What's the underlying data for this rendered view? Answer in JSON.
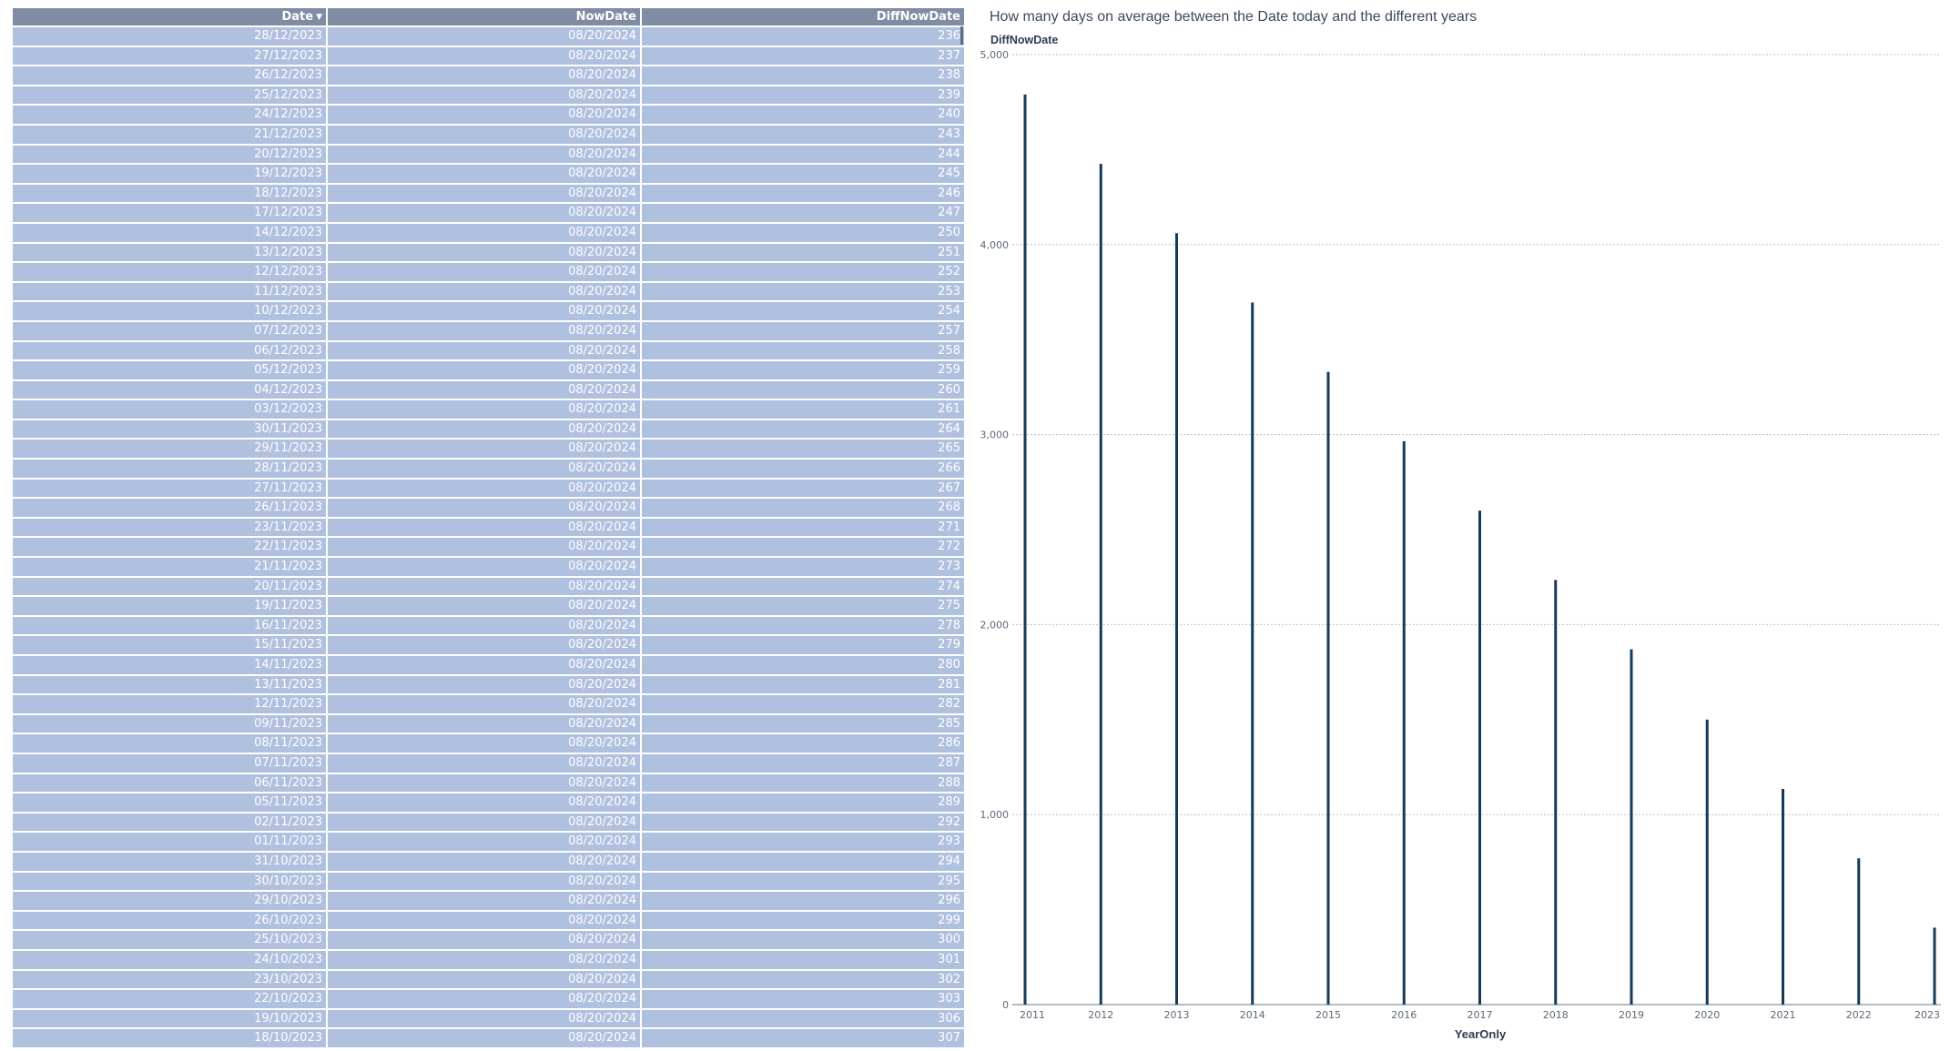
{
  "table": {
    "headers": [
      "Date",
      "NowDate",
      "DiffNowDate"
    ],
    "rows": [
      [
        "28/12/2023",
        "08/20/2024",
        "236"
      ],
      [
        "27/12/2023",
        "08/20/2024",
        "237"
      ],
      [
        "26/12/2023",
        "08/20/2024",
        "238"
      ],
      [
        "25/12/2023",
        "08/20/2024",
        "239"
      ],
      [
        "24/12/2023",
        "08/20/2024",
        "240"
      ],
      [
        "21/12/2023",
        "08/20/2024",
        "243"
      ],
      [
        "20/12/2023",
        "08/20/2024",
        "244"
      ],
      [
        "19/12/2023",
        "08/20/2024",
        "245"
      ],
      [
        "18/12/2023",
        "08/20/2024",
        "246"
      ],
      [
        "17/12/2023",
        "08/20/2024",
        "247"
      ],
      [
        "14/12/2023",
        "08/20/2024",
        "250"
      ],
      [
        "13/12/2023",
        "08/20/2024",
        "251"
      ],
      [
        "12/12/2023",
        "08/20/2024",
        "252"
      ],
      [
        "11/12/2023",
        "08/20/2024",
        "253"
      ],
      [
        "10/12/2023",
        "08/20/2024",
        "254"
      ],
      [
        "07/12/2023",
        "08/20/2024",
        "257"
      ],
      [
        "06/12/2023",
        "08/20/2024",
        "258"
      ],
      [
        "05/12/2023",
        "08/20/2024",
        "259"
      ],
      [
        "04/12/2023",
        "08/20/2024",
        "260"
      ],
      [
        "03/12/2023",
        "08/20/2024",
        "261"
      ],
      [
        "30/11/2023",
        "08/20/2024",
        "264"
      ],
      [
        "29/11/2023",
        "08/20/2024",
        "265"
      ],
      [
        "28/11/2023",
        "08/20/2024",
        "266"
      ],
      [
        "27/11/2023",
        "08/20/2024",
        "267"
      ],
      [
        "26/11/2023",
        "08/20/2024",
        "268"
      ],
      [
        "23/11/2023",
        "08/20/2024",
        "271"
      ],
      [
        "22/11/2023",
        "08/20/2024",
        "272"
      ],
      [
        "21/11/2023",
        "08/20/2024",
        "273"
      ],
      [
        "20/11/2023",
        "08/20/2024",
        "274"
      ],
      [
        "19/11/2023",
        "08/20/2024",
        "275"
      ],
      [
        "16/11/2023",
        "08/20/2024",
        "278"
      ],
      [
        "15/11/2023",
        "08/20/2024",
        "279"
      ],
      [
        "14/11/2023",
        "08/20/2024",
        "280"
      ],
      [
        "13/11/2023",
        "08/20/2024",
        "281"
      ],
      [
        "12/11/2023",
        "08/20/2024",
        "282"
      ],
      [
        "09/11/2023",
        "08/20/2024",
        "285"
      ],
      [
        "08/11/2023",
        "08/20/2024",
        "286"
      ],
      [
        "07/11/2023",
        "08/20/2024",
        "287"
      ],
      [
        "06/11/2023",
        "08/20/2024",
        "288"
      ],
      [
        "05/11/2023",
        "08/20/2024",
        "289"
      ],
      [
        "02/11/2023",
        "08/20/2024",
        "292"
      ],
      [
        "01/11/2023",
        "08/20/2024",
        "293"
      ],
      [
        "31/10/2023",
        "08/20/2024",
        "294"
      ],
      [
        "30/10/2023",
        "08/20/2024",
        "295"
      ],
      [
        "29/10/2023",
        "08/20/2024",
        "296"
      ],
      [
        "26/10/2023",
        "08/20/2024",
        "299"
      ],
      [
        "25/10/2023",
        "08/20/2024",
        "300"
      ],
      [
        "24/10/2023",
        "08/20/2024",
        "301"
      ],
      [
        "23/10/2023",
        "08/20/2024",
        "302"
      ],
      [
        "22/10/2023",
        "08/20/2024",
        "303"
      ],
      [
        "19/10/2023",
        "08/20/2024",
        "306"
      ],
      [
        "18/10/2023",
        "08/20/2024",
        "307"
      ]
    ],
    "sort_icon": "sort-descending-icon",
    "colors": {
      "header_bg": "#7f8ca3",
      "row_bg": "#b0c0df",
      "text": "#ffffff"
    }
  },
  "chart_data": {
    "type": "bar",
    "title": "How many days on average between the Date today and the different years",
    "ylabel": "DiffNowDate",
    "xlabel": "YearOnly",
    "categories": [
      "2011",
      "2012",
      "2013",
      "2014",
      "2015",
      "2016",
      "2017",
      "2018",
      "2019",
      "2020",
      "2021",
      "2022",
      "2023"
    ],
    "values": [
      4790,
      4425,
      4060,
      3695,
      3330,
      2965,
      2600,
      2235,
      1870,
      1500,
      1135,
      770,
      405
    ],
    "ylim": [
      0,
      5000
    ],
    "yticks": [
      "0",
      "1,000",
      "2,000",
      "3,000",
      "4,000",
      "5,000"
    ],
    "grid": true,
    "bar_color": "#163a5a"
  }
}
